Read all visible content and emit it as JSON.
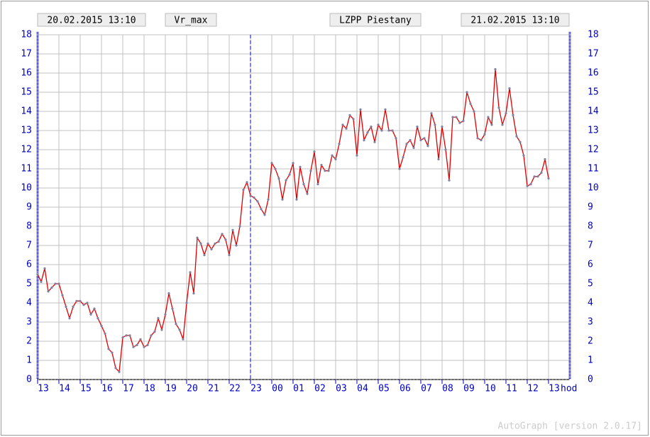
{
  "chart_data": {
    "type": "line",
    "header": [
      "20.02.2015 13:10",
      "Vr_max",
      "LZPP Piestany",
      "21.02.2015 13:10"
    ],
    "footer": "AutoGraph [version 2.0.17]",
    "x_label": "hod",
    "x": [
      0,
      10,
      20,
      30,
      40,
      50,
      60,
      70,
      80,
      90,
      100,
      110,
      120,
      130,
      140,
      150,
      160,
      170,
      180,
      190,
      200,
      210,
      220,
      230,
      240,
      250,
      260,
      270,
      280,
      290,
      300,
      310,
      320,
      330,
      340,
      350,
      360,
      370,
      380,
      390,
      400,
      410,
      420,
      430,
      440,
      450,
      460,
      470,
      480,
      490,
      500,
      510,
      520,
      530,
      540,
      550,
      560,
      570,
      580,
      590,
      600,
      610,
      620,
      630,
      640,
      650,
      660,
      670,
      680,
      690,
      700,
      710,
      720,
      730,
      740,
      750,
      760,
      770,
      780,
      790,
      800,
      810,
      820,
      830,
      840,
      850,
      860,
      870,
      880,
      890,
      900,
      910,
      920,
      930,
      940,
      950,
      960,
      970,
      980,
      990,
      1000,
      1010,
      1020,
      1030,
      1040,
      1050,
      1060,
      1070,
      1080,
      1090,
      1100,
      1110,
      1120,
      1130,
      1140,
      1150,
      1160,
      1170,
      1180,
      1190,
      1200,
      1210,
      1220,
      1230,
      1240,
      1250,
      1260,
      1270,
      1280,
      1290,
      1300,
      1310,
      1320,
      1330,
      1340,
      1350,
      1360,
      1370,
      1380,
      1390,
      1400,
      1410,
      1420,
      1430,
      1440
    ],
    "series": [
      {
        "name": "Vr_max",
        "color": "#e00000",
        "values": [
          5.5,
          5.1,
          5.8,
          4.6,
          4.8,
          5.0,
          5.0,
          4.4,
          3.8,
          3.2,
          3.8,
          4.1,
          4.1,
          3.9,
          4.0,
          3.4,
          3.7,
          3.2,
          2.8,
          2.4,
          1.6,
          1.4,
          0.6,
          0.4,
          2.2,
          2.3,
          2.3,
          1.7,
          1.8,
          2.1,
          1.7,
          1.8,
          2.3,
          2.5,
          3.2,
          2.6,
          3.4,
          4.5,
          3.7,
          2.9,
          2.6,
          2.1,
          4.0,
          5.6,
          4.5,
          7.4,
          7.1,
          6.5,
          7.1,
          6.8,
          7.1,
          7.2,
          7.6,
          7.3,
          6.5,
          7.8,
          7.0,
          8.0,
          9.9,
          10.3,
          9.6,
          9.5,
          9.3,
          8.9,
          8.6,
          9.4,
          11.3,
          11.0,
          10.5,
          9.4,
          10.4,
          10.7,
          11.3,
          9.4,
          11.1,
          10.2,
          9.7,
          10.9,
          11.9,
          10.2,
          11.2,
          10.9,
          10.9,
          11.7,
          11.5,
          12.3,
          13.3,
          13.1,
          13.8,
          13.6,
          11.7,
          14.1,
          12.5,
          12.9,
          13.2,
          12.4,
          13.3,
          13.0,
          14.1,
          13.0,
          13.0,
          12.6,
          11.0,
          11.6,
          12.3,
          12.5,
          12.1,
          13.2,
          12.5,
          12.6,
          12.2,
          13.9,
          13.3,
          11.5,
          13.2,
          12.0,
          10.4,
          13.7,
          13.7,
          13.4,
          13.5,
          15.0,
          14.4,
          14.0,
          12.6,
          12.5,
          12.8,
          13.7,
          13.3,
          16.2,
          14.2,
          13.3,
          13.9,
          15.2,
          13.8,
          12.7,
          12.4,
          11.7,
          10.1,
          10.2,
          10.6,
          10.6,
          10.8,
          11.5,
          10.5
        ]
      }
    ],
    "marker_x": 600,
    "xlim": [
      0,
      1500
    ],
    "xticks": [
      {
        "value": 0,
        "label": "13"
      },
      {
        "value": 60,
        "label": "14"
      },
      {
        "value": 120,
        "label": "15"
      },
      {
        "value": 180,
        "label": "16"
      },
      {
        "value": 240,
        "label": "17"
      },
      {
        "value": 300,
        "label": "18"
      },
      {
        "value": 360,
        "label": "19"
      },
      {
        "value": 420,
        "label": "20"
      },
      {
        "value": 480,
        "label": "21"
      },
      {
        "value": 540,
        "label": "22"
      },
      {
        "value": 600,
        "label": "23"
      },
      {
        "value": 660,
        "label": "00"
      },
      {
        "value": 720,
        "label": "01"
      },
      {
        "value": 780,
        "label": "02"
      },
      {
        "value": 840,
        "label": "03"
      },
      {
        "value": 900,
        "label": "04"
      },
      {
        "value": 960,
        "label": "05"
      },
      {
        "value": 1020,
        "label": "06"
      },
      {
        "value": 1080,
        "label": "07"
      },
      {
        "value": 1140,
        "label": "08"
      },
      {
        "value": 1200,
        "label": "09"
      },
      {
        "value": 1260,
        "label": "10"
      },
      {
        "value": 1320,
        "label": "11"
      },
      {
        "value": 1380,
        "label": "12"
      },
      {
        "value": 1440,
        "label": "13"
      }
    ],
    "ylim": [
      0,
      18
    ],
    "yticks": [
      0,
      1,
      2,
      3,
      4,
      5,
      6,
      7,
      8,
      9,
      10,
      11,
      12,
      13,
      14,
      15,
      16,
      17,
      18
    ],
    "grid": true
  }
}
